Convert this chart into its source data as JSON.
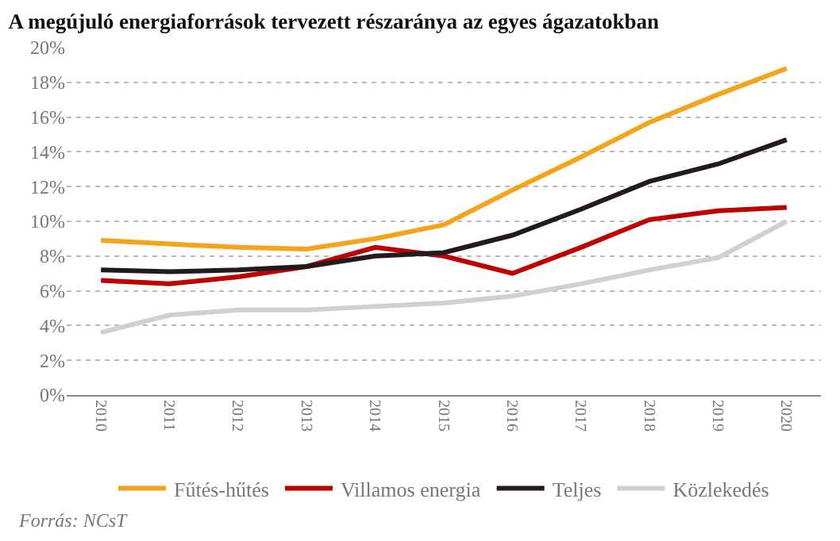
{
  "chart_data": {
    "type": "line",
    "title": "A megújuló energiaforrások tervezett részaránya az egyes ágazatokban",
    "categories": [
      "2010",
      "2011",
      "2012",
      "2013",
      "2014",
      "2015",
      "2016",
      "2017",
      "2018",
      "2019",
      "2020"
    ],
    "series": [
      {
        "name": "Fűtés-hűtés",
        "color": "#f5a31a",
        "values": [
          8.9,
          8.7,
          8.5,
          8.4,
          9.0,
          9.8,
          11.8,
          13.7,
          15.7,
          17.3,
          18.8
        ]
      },
      {
        "name": "Villamos energia",
        "color": "#c00000",
        "values": [
          6.6,
          6.4,
          6.8,
          7.4,
          8.5,
          8.0,
          7.0,
          8.5,
          10.1,
          10.6,
          10.8
        ]
      },
      {
        "name": "Teljes",
        "color": "#231a20",
        "values": [
          7.2,
          7.1,
          7.2,
          7.4,
          8.0,
          8.2,
          9.2,
          10.7,
          12.3,
          13.3,
          14.7
        ]
      },
      {
        "name": "Közlekedés",
        "color": "#d0d0d0",
        "values": [
          3.6,
          4.6,
          4.9,
          4.9,
          5.1,
          5.3,
          5.7,
          6.4,
          7.2,
          7.9,
          10.0
        ]
      }
    ],
    "ylim": [
      0,
      20
    ],
    "yticks": [
      {
        "value": 0,
        "label": "0%"
      },
      {
        "value": 2,
        "label": "2%"
      },
      {
        "value": 4,
        "label": "4%"
      },
      {
        "value": 6,
        "label": "6%"
      },
      {
        "value": 8,
        "label": "8%"
      },
      {
        "value": 10,
        "label": "10%"
      },
      {
        "value": 12,
        "label": "12%"
      },
      {
        "value": 14,
        "label": "14%"
      },
      {
        "value": 16,
        "label": "16%"
      },
      {
        "value": 18,
        "label": "18%"
      },
      {
        "value": 20,
        "label": "20%"
      }
    ],
    "grid": "y",
    "legend": "bottom",
    "marker": "none",
    "line_style": "solid",
    "annotations": [
      "Forrás: NCsT"
    ]
  }
}
